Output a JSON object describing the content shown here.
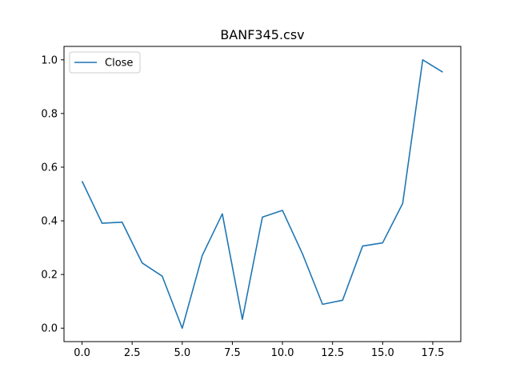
{
  "chart_data": {
    "type": "line",
    "title": "BANF345.csv",
    "xlabel": "",
    "ylabel": "",
    "xlim": [
      -0.9,
      18.9
    ],
    "ylim": [
      -0.05,
      1.05
    ],
    "xticks": [
      0.0,
      2.5,
      5.0,
      7.5,
      10.0,
      12.5,
      15.0,
      17.5
    ],
    "xtick_labels": [
      "0.0",
      "2.5",
      "5.0",
      "7.5",
      "10.0",
      "12.5",
      "15.0",
      "17.5"
    ],
    "yticks": [
      0.0,
      0.2,
      0.4,
      0.6,
      0.8,
      1.0
    ],
    "ytick_labels": [
      "0.0",
      "0.2",
      "0.4",
      "0.6",
      "0.8",
      "1.0"
    ],
    "grid": false,
    "legend_position": "top-left",
    "series": [
      {
        "name": "Close",
        "color": "#1f77b4",
        "x": [
          0,
          1,
          2,
          3,
          4,
          5,
          6,
          7,
          8,
          9,
          10,
          11,
          12,
          13,
          14,
          15,
          16,
          17,
          18
        ],
        "y": [
          0.548,
          0.391,
          0.395,
          0.243,
          0.194,
          0.0,
          0.271,
          0.426,
          0.033,
          0.414,
          0.439,
          0.277,
          0.089,
          0.104,
          0.306,
          0.318,
          0.465,
          1.0,
          0.954
        ]
      }
    ]
  }
}
